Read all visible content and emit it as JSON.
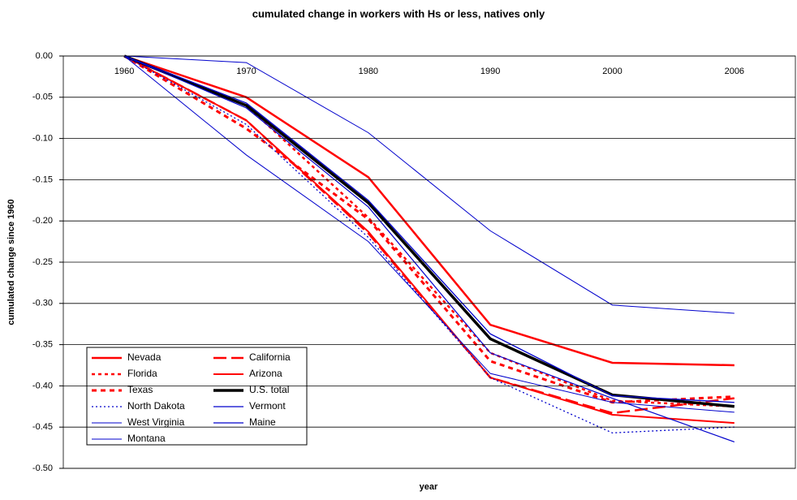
{
  "chart_data": {
    "type": "line",
    "title": "cumulated change in workers with Hs or less, natives only",
    "x_label": "year",
    "y_label": "cumulated change since 1960",
    "categories": [
      "1960",
      "1970",
      "1980",
      "1990",
      "2000",
      "2006"
    ],
    "ylim": [
      -0.5,
      0
    ],
    "yticks": [
      {
        "value": 0,
        "label": "0.00"
      },
      {
        "value": -0.05,
        "label": "-0.05"
      },
      {
        "value": -0.1,
        "label": "-0.10"
      },
      {
        "value": -0.15,
        "label": "-0.15"
      },
      {
        "value": -0.2,
        "label": "-0.20"
      },
      {
        "value": -0.25,
        "label": "-0.25"
      },
      {
        "value": -0.3,
        "label": "-0.30"
      },
      {
        "value": -0.35,
        "label": "-0.35"
      },
      {
        "value": -0.4,
        "label": "-0.40"
      },
      {
        "value": -0.45,
        "label": "-0.45"
      },
      {
        "value": -0.5,
        "label": "-0.50"
      }
    ],
    "grid": true,
    "legend": "lower left",
    "series": [
      {
        "name": "Nevada",
        "color": "#ff0000",
        "values": [
          0,
          -0.05,
          -0.147,
          -0.326,
          -0.372,
          -0.375
        ]
      },
      {
        "name": "California",
        "color": "#ff0000",
        "values": [
          0,
          -0.078,
          -0.215,
          -0.39,
          -0.433,
          -0.415
        ]
      },
      {
        "name": "Florida",
        "color": "#ff0000",
        "values": [
          0,
          -0.06,
          -0.196,
          -0.36,
          -0.418,
          -0.425
        ]
      },
      {
        "name": "Arizona",
        "color": "#ff0000",
        "values": [
          0,
          -0.078,
          -0.213,
          -0.39,
          -0.435,
          -0.445
        ]
      },
      {
        "name": "Texas",
        "color": "#ff0000",
        "values": [
          0,
          -0.088,
          -0.198,
          -0.37,
          -0.42,
          -0.413
        ]
      },
      {
        "name": "U.S. total",
        "color": "#000000",
        "values": [
          0,
          -0.06,
          -0.178,
          -0.343,
          -0.411,
          -0.425
        ]
      },
      {
        "name": "North Dakota",
        "color": "#0000cc",
        "values": [
          0,
          -0.083,
          -0.22,
          -0.39,
          -0.457,
          -0.45
        ]
      },
      {
        "name": "Vermont",
        "color": "#0000cc",
        "values": [
          0,
          -0.057,
          -0.175,
          -0.337,
          -0.412,
          -0.42
        ]
      },
      {
        "name": "West Virginia",
        "color": "#0000cc",
        "values": [
          0,
          -0.12,
          -0.225,
          -0.385,
          -0.42,
          -0.432
        ]
      },
      {
        "name": "Maine",
        "color": "#0000cc",
        "values": [
          0,
          -0.063,
          -0.183,
          -0.36,
          -0.415,
          -0.468
        ]
      },
      {
        "name": "Montana",
        "color": "#0000cc",
        "values": [
          0,
          -0.008,
          -0.093,
          -0.212,
          -0.302,
          -0.312
        ]
      }
    ]
  }
}
